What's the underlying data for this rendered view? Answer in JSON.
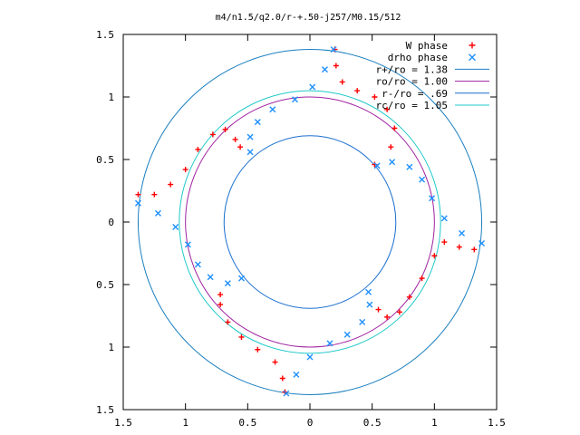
{
  "chart_data": {
    "type": "scatter",
    "title": "m4/n1.5/q2.0/r-+.50-j257/M0.15/512",
    "xlabel": "",
    "ylabel": "",
    "xlim": [
      -1.5,
      1.5
    ],
    "ylim": [
      -1.5,
      1.5
    ],
    "x_ticks": [
      -1.5,
      -1,
      -0.5,
      0,
      0.5,
      1,
      1.5
    ],
    "x_tick_labels": [
      "1.5",
      "1",
      "0.5",
      "0",
      "0.5",
      "1",
      "1.5"
    ],
    "y_ticks": [
      -1.5,
      -1,
      -0.5,
      0,
      0.5,
      1,
      1.5
    ],
    "y_tick_labels": [
      "1.5",
      "1",
      "0.5",
      "0",
      "0.5",
      "1",
      "1.5"
    ],
    "grid": false,
    "legend_position": "top-right",
    "series": [
      {
        "name": "W phase",
        "style": "points",
        "marker": "plus",
        "color": "#ff0000",
        "points": [
          [
            1.32,
            -0.22
          ],
          [
            1.2,
            -0.2
          ],
          [
            1.08,
            -0.16
          ],
          [
            1.0,
            -0.27
          ],
          [
            0.9,
            -0.45
          ],
          [
            0.8,
            -0.6
          ],
          [
            0.72,
            -0.72
          ],
          [
            0.62,
            -0.76
          ],
          [
            0.55,
            -0.7
          ],
          [
            0.2,
            1.38
          ],
          [
            0.21,
            1.25
          ],
          [
            0.26,
            1.12
          ],
          [
            0.38,
            1.05
          ],
          [
            0.52,
            1.0
          ],
          [
            0.62,
            0.9
          ],
          [
            0.68,
            0.75
          ],
          [
            0.65,
            0.6
          ],
          [
            0.52,
            0.46
          ],
          [
            -1.38,
            0.22
          ],
          [
            -1.25,
            0.22
          ],
          [
            -1.12,
            0.3
          ],
          [
            -1.0,
            0.42
          ],
          [
            -0.9,
            0.58
          ],
          [
            -0.78,
            0.7
          ],
          [
            -0.68,
            0.74
          ],
          [
            -0.6,
            0.66
          ],
          [
            -0.56,
            0.6
          ],
          [
            -0.2,
            -1.36
          ],
          [
            -0.22,
            -1.25
          ],
          [
            -0.28,
            -1.12
          ],
          [
            -0.42,
            -1.02
          ],
          [
            -0.55,
            -0.92
          ],
          [
            -0.66,
            -0.8
          ],
          [
            -0.72,
            -0.66
          ],
          [
            -0.72,
            -0.58
          ]
        ]
      },
      {
        "name": "drho phase",
        "style": "points",
        "marker": "cross",
        "color": "#1e90ff",
        "points": [
          [
            0.19,
            1.38
          ],
          [
            0.12,
            1.22
          ],
          [
            0.02,
            1.08
          ],
          [
            -0.12,
            0.98
          ],
          [
            -0.3,
            0.9
          ],
          [
            -0.42,
            0.8
          ],
          [
            -0.48,
            0.68
          ],
          [
            -0.48,
            0.56
          ],
          [
            -1.38,
            0.15
          ],
          [
            -1.22,
            0.07
          ],
          [
            -1.08,
            -0.04
          ],
          [
            -0.98,
            -0.18
          ],
          [
            -0.9,
            -0.34
          ],
          [
            -0.8,
            -0.44
          ],
          [
            -0.66,
            -0.49
          ],
          [
            -0.55,
            -0.45
          ],
          [
            -0.19,
            -1.37
          ],
          [
            -0.11,
            -1.22
          ],
          [
            0.0,
            -1.08
          ],
          [
            0.16,
            -0.97
          ],
          [
            0.3,
            -0.9
          ],
          [
            0.42,
            -0.8
          ],
          [
            0.48,
            -0.66
          ],
          [
            0.47,
            -0.56
          ],
          [
            1.38,
            -0.17
          ],
          [
            1.22,
            -0.09
          ],
          [
            1.08,
            0.03
          ],
          [
            0.98,
            0.19
          ],
          [
            0.9,
            0.34
          ],
          [
            0.8,
            0.44
          ],
          [
            0.66,
            0.48
          ],
          [
            0.54,
            0.45
          ]
        ]
      },
      {
        "name": "r+/ro = 1.38",
        "style": "circle",
        "radius": 1.38,
        "color": "#1a7fbf"
      },
      {
        "name": "ro/ro = 1.00",
        "style": "circle",
        "radius": 1.0,
        "color": "#a020a0"
      },
      {
        "name": "r-/ro = .69",
        "style": "circle",
        "radius": 0.69,
        "color": "#1a6fcf"
      },
      {
        "name": "rc/ro = 1.05",
        "style": "circle",
        "radius": 1.05,
        "color": "#20c8c8"
      }
    ]
  }
}
